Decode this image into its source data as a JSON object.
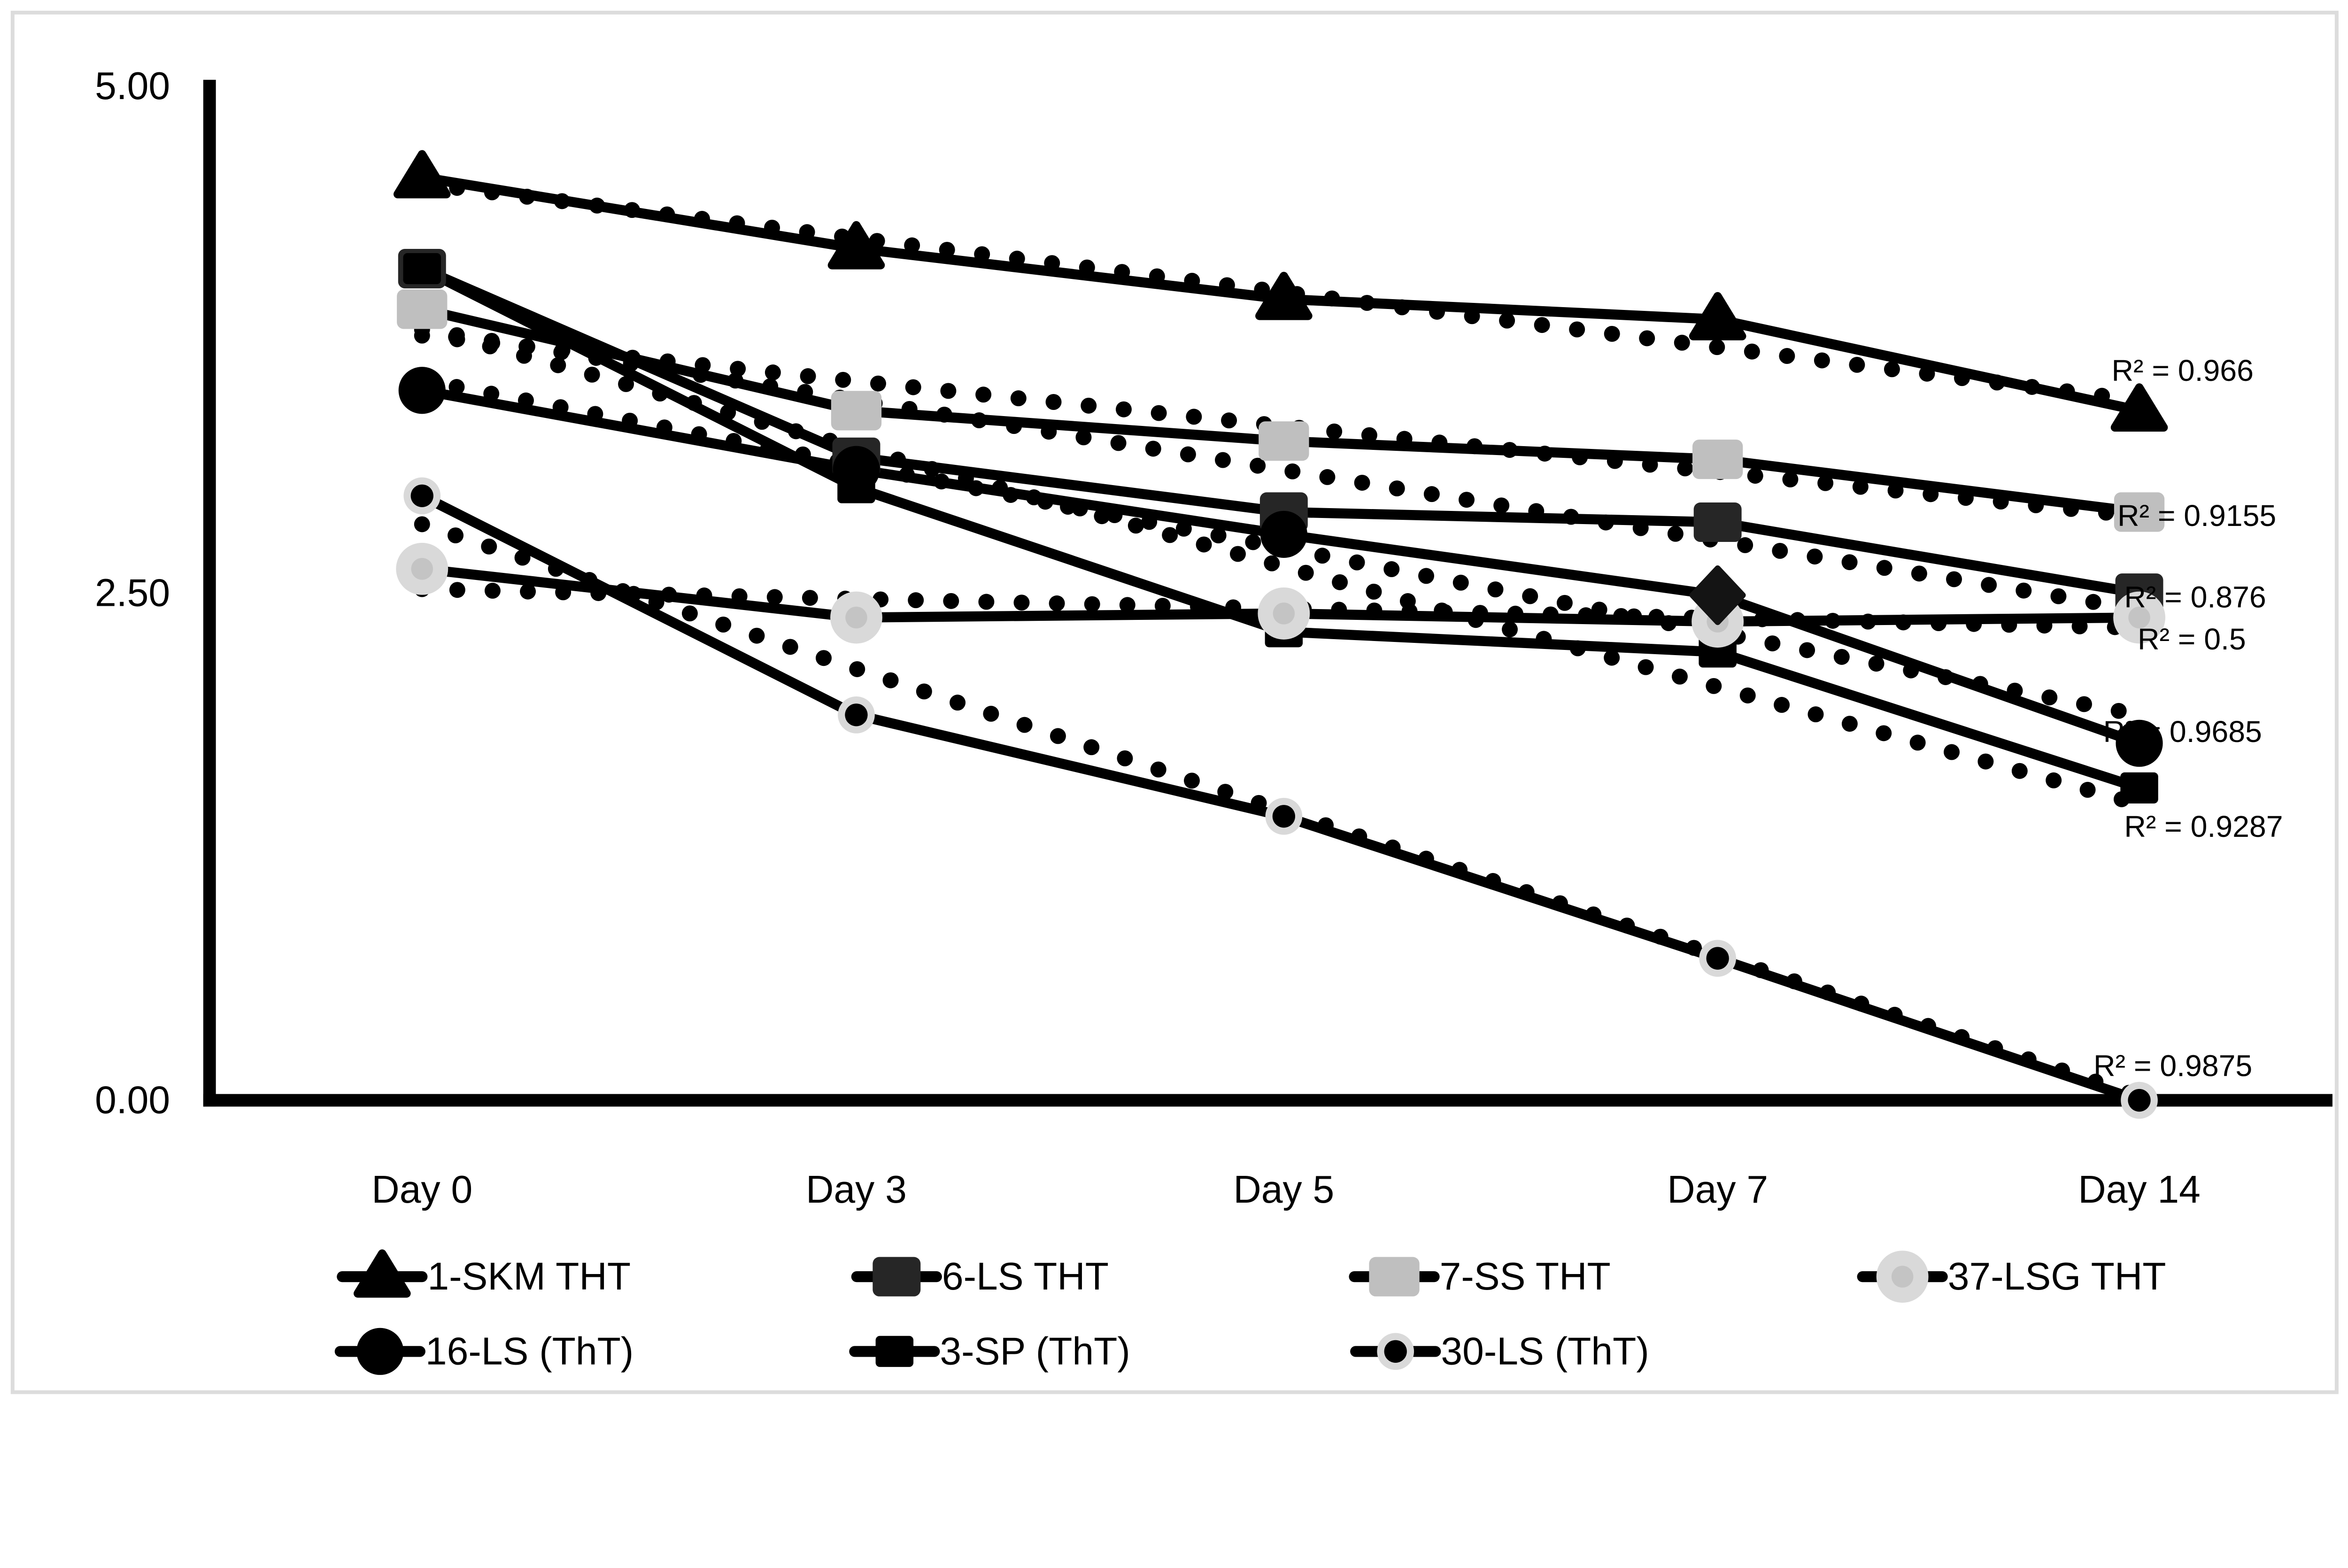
{
  "colors": {
    "background": "#ffffff",
    "border": "#dcdcdc",
    "text": "#000000",
    "series_line": "#000000",
    "dark_square": "#262626",
    "gray_square": "#bfbfbf",
    "light_gray_circle": "#d9d9d9",
    "light_gray_inner": "#c4c4c4",
    "ring_gray": "#d9d9d9",
    "diamond_fill": "#141414"
  },
  "y_axis": {
    "ticks": [
      {
        "label": "5.00",
        "value": 5
      },
      {
        "label": "2.50",
        "value": 2.5
      },
      {
        "label": "0.00",
        "value": 0
      }
    ],
    "min": 0,
    "max": 5
  },
  "x_axis": {
    "categories": [
      "Day 0",
      "Day 3",
      "Day 5",
      "Day 7",
      "Day 14"
    ]
  },
  "chart_data": {
    "type": "line",
    "title": "",
    "xlabel": "",
    "ylabel": "",
    "ylim": [
      0,
      5
    ],
    "grid": false,
    "legend_position": "bottom",
    "categories": [
      "Day 0",
      "Day 3",
      "Day 5",
      "Day 7",
      "Day 14"
    ],
    "series": [
      {
        "name": "1-SKM THT",
        "marker": "triangle",
        "line": "solid",
        "values": [
          4.55,
          4.2,
          3.95,
          3.85,
          3.4
        ],
        "trendline": {
          "style": "dotted",
          "start": 4.52,
          "end": 3.45
        },
        "r2": 0.966,
        "r2_label": "R² = 0.966"
      },
      {
        "name": "6-LS THT",
        "marker": "square-dark",
        "line": "solid",
        "values": [
          4.1,
          3.17,
          2.9,
          2.85,
          2.5
        ],
        "trendline": {
          "style": "dotted",
          "start": 3.8,
          "end": 2.42
        },
        "r2": 0.876,
        "r2_label": "R² = 0.876"
      },
      {
        "name": "7-SS THT",
        "marker": "square-gray",
        "line": "solid",
        "values": [
          3.9,
          3.4,
          3.25,
          3.16,
          2.9
        ],
        "trendline": {
          "style": "dotted",
          "start": 3.77,
          "end": 2.88
        },
        "r2": 0.9155,
        "r2_label": "R² = 0.9155"
      },
      {
        "name": "37-LSG THT",
        "marker": "circle-gray",
        "line": "solid",
        "values": [
          2.62,
          2.38,
          2.4,
          2.36,
          2.38
        ],
        "trendline": {
          "style": "dotted",
          "start": 2.52,
          "end": 2.33
        },
        "r2": 0.5,
        "r2_label": "R² = 0.5"
      },
      {
        "name": "16-LS (ThT)",
        "marker": "circle-black",
        "point_markers": [
          "circle-black",
          "circle-black",
          "circle-black",
          "diamond",
          "circle-black"
        ],
        "line": "solid",
        "values": [
          3.5,
          3.11,
          2.79,
          2.49,
          1.76
        ],
        "trendline": {
          "style": "dotted",
          "start": 3.55,
          "end": 1.9
        },
        "r2": 0.9685,
        "r2_label": "R² = 0.9685"
      },
      {
        "name": "3-SP (ThT)",
        "marker": "square-black",
        "line": "solid",
        "values": [
          4.1,
          3.02,
          2.31,
          2.21,
          1.54
        ],
        "trendline": {
          "style": "dotted",
          "start": 3.81,
          "end": 1.46
        },
        "r2": 0.9287,
        "r2_label": "R² = 0.9287"
      },
      {
        "name": "30-LS (ThT)",
        "marker": "dot-ring",
        "line": "solid",
        "values": [
          2.98,
          1.9,
          1.4,
          0.7,
          0.0
        ],
        "trendline": {
          "style": "dotted",
          "start": 2.84,
          "end": 0.02
        },
        "r2": 0.9875,
        "r2_label": "R² = 0.9875"
      }
    ]
  },
  "legend": {
    "rows": [
      [
        "1-SKM THT",
        "6-LS THT",
        "7-SS THT",
        "37-LSG THT"
      ],
      [
        "16-LS (ThT)",
        "3-SP (ThT)",
        "30-LS (ThT)"
      ]
    ]
  }
}
